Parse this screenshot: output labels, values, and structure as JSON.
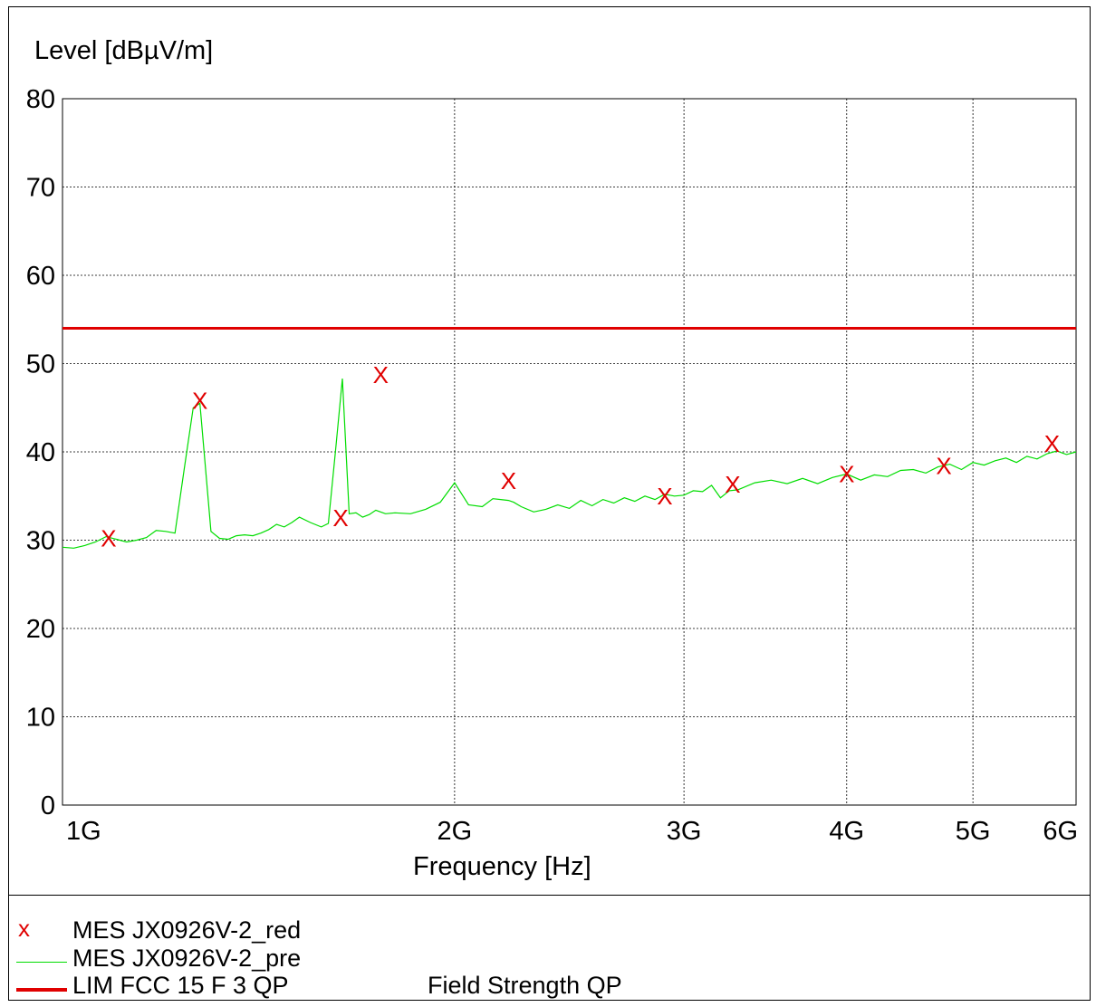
{
  "chart_data": {
    "type": "line",
    "ylabel": "Level [dBµV/m]",
    "xlabel": "Frequency [Hz]",
    "ylim": [
      0,
      80
    ],
    "xlim_hz": [
      1000000000,
      6000000000
    ],
    "x_scale": "log",
    "y_ticks": [
      "0",
      "10",
      "20",
      "30",
      "40",
      "50",
      "60",
      "70",
      "80"
    ],
    "x_ticks": [
      {
        "label": "1G",
        "value": 1000000000
      },
      {
        "label": "2G",
        "value": 2000000000
      },
      {
        "label": "3G",
        "value": 3000000000
      },
      {
        "label": "4G",
        "value": 4000000000
      },
      {
        "label": "5G",
        "value": 5000000000
      },
      {
        "label": "6G",
        "value": 6000000000
      }
    ],
    "grid": true,
    "legend_position": "bottom",
    "colors": {
      "measurement": "#e00000",
      "prescan": "#00dd00",
      "limit": "#e00000"
    },
    "series": [
      {
        "name": "MES  JX0926V-2_pre",
        "style": "line",
        "x_ghz": [
          1.0,
          1.02,
          1.04,
          1.06,
          1.08,
          1.1,
          1.12,
          1.14,
          1.16,
          1.18,
          1.2,
          1.22,
          1.24,
          1.26,
          1.275,
          1.3,
          1.32,
          1.34,
          1.36,
          1.38,
          1.4,
          1.42,
          1.44,
          1.46,
          1.48,
          1.5,
          1.52,
          1.55,
          1.58,
          1.6,
          1.62,
          1.64,
          1.66,
          1.68,
          1.7,
          1.72,
          1.74,
          1.77,
          1.8,
          1.85,
          1.9,
          1.95,
          2.0,
          2.05,
          2.1,
          2.14,
          2.17,
          2.2,
          2.22,
          2.25,
          2.3,
          2.35,
          2.4,
          2.45,
          2.5,
          2.55,
          2.6,
          2.65,
          2.7,
          2.75,
          2.8,
          2.85,
          2.9,
          2.95,
          3.0,
          3.05,
          3.1,
          3.15,
          3.2,
          3.25,
          3.3,
          3.4,
          3.5,
          3.6,
          3.7,
          3.8,
          3.9,
          4.0,
          4.1,
          4.2,
          4.3,
          4.4,
          4.5,
          4.6,
          4.7,
          4.8,
          4.9,
          5.0,
          5.1,
          5.2,
          5.3,
          5.4,
          5.5,
          5.6,
          5.7,
          5.8,
          5.9,
          6.0
        ],
        "y": [
          29.2,
          29.1,
          29.4,
          29.8,
          30.4,
          30.1,
          29.8,
          30.0,
          30.3,
          31.1,
          31.0,
          30.8,
          38.0,
          45.0,
          45.5,
          31.0,
          30.2,
          30.1,
          30.5,
          30.6,
          30.5,
          30.8,
          31.2,
          31.8,
          31.5,
          32.0,
          32.6,
          32.0,
          31.5,
          31.9,
          40.0,
          48.3,
          33.0,
          33.1,
          32.6,
          32.9,
          33.4,
          33.0,
          33.1,
          33.0,
          33.5,
          34.3,
          36.5,
          34.0,
          33.8,
          34.7,
          34.6,
          34.5,
          34.3,
          33.8,
          33.2,
          33.5,
          34.0,
          33.6,
          34.5,
          33.9,
          34.6,
          34.2,
          34.8,
          34.4,
          35.0,
          34.6,
          35.2,
          35.0,
          35.1,
          35.6,
          35.5,
          36.2,
          34.8,
          35.6,
          35.7,
          36.5,
          36.8,
          36.4,
          37.0,
          36.4,
          37.1,
          37.5,
          36.8,
          37.4,
          37.2,
          37.9,
          38.0,
          37.6,
          38.3,
          38.6,
          38.0,
          38.8,
          38.5,
          39.0,
          39.3,
          38.8,
          39.5,
          39.2,
          39.8,
          40.1,
          39.7,
          40.0
        ]
      },
      {
        "name": "MES  JX0926V-2_red",
        "style": "markers",
        "marker": "x",
        "x_ghz": [
          1.085,
          1.275,
          1.635,
          1.755,
          2.2,
          2.9,
          3.27,
          4.0,
          4.75,
          5.75
        ],
        "y": [
          30.2,
          45.8,
          32.5,
          48.7,
          36.7,
          35.0,
          36.3,
          37.5,
          38.4,
          40.9
        ]
      },
      {
        "name": "LIM  FCC 15 F 3 QP",
        "legend_extra": "Field Strength QP",
        "style": "line",
        "x_ghz": [
          1.0,
          6.0
        ],
        "y": [
          54.0,
          54.0
        ]
      }
    ]
  },
  "legend": [
    {
      "symbol": "x",
      "label": "MES  JX0926V-2_red",
      "extra": ""
    },
    {
      "symbol": "green-line",
      "label": "MES  JX0926V-2_pre",
      "extra": ""
    },
    {
      "symbol": "red-line",
      "label": "LIM  FCC 15 F 3 QP",
      "extra": "Field Strength QP"
    }
  ]
}
